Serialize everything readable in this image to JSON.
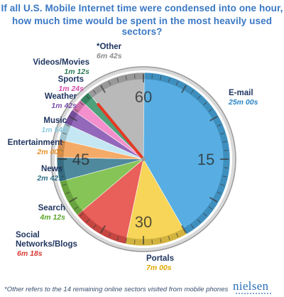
{
  "title_line1": "If all U.S. Mobile Internet time were condensed into one hour,",
  "title_line2": "how much time  would be spent in the most heavily used sectors?",
  "footnote": "*Other refers to the 14 remaining online sectors visited from mobile phones",
  "brand": "nielsen",
  "dial_numbers": {
    "n60": "60",
    "n15": "15",
    "n30": "30",
    "n45": "45"
  },
  "colors": {
    "email": "#4aa8e0",
    "portals": "#f7d24a",
    "social": "#e8524c",
    "search": "#7cc04a",
    "news": "#3f7f96",
    "entertainment": "#f4a45c",
    "music": "#bfe6f2",
    "weather": "#8a5cb5",
    "sports": "#f286c8",
    "videos": "#3f9a70",
    "other": "#b4b4b4",
    "hand": "#e53a24"
  },
  "chart_data": {
    "type": "pie",
    "title": "If all U.S. Mobile Internet time were condensed into one hour, how much time  would be spent in the most heavily used sectors?",
    "unit": "minutes of 60",
    "slices": [
      {
        "label": "E-mail",
        "value_text": "25m 00s",
        "minutes": 25.0
      },
      {
        "label": "Portals",
        "value_text": "7m 00s",
        "minutes": 7.0
      },
      {
        "label": "Social Networks/Blogs",
        "value_text": "6m 18s",
        "minutes": 6.3
      },
      {
        "label": "Search",
        "value_text": "4m 12s",
        "minutes": 4.2
      },
      {
        "label": "News",
        "value_text": "2m 42s",
        "minutes": 2.7
      },
      {
        "label": "Entertainment",
        "value_text": "2m 00s",
        "minutes": 2.0
      },
      {
        "label": "Music",
        "value_text": "1m 54s",
        "minutes": 1.9
      },
      {
        "label": "Weather",
        "value_text": "1m 42s",
        "minutes": 1.7
      },
      {
        "label": "Sports",
        "value_text": "1m 24s",
        "minutes": 1.4
      },
      {
        "label": "Videos/Movies",
        "value_text": "1m 12s",
        "minutes": 1.2
      },
      {
        "label": "*Other",
        "value_text": "6m 42s",
        "minutes": 6.7
      }
    ]
  }
}
